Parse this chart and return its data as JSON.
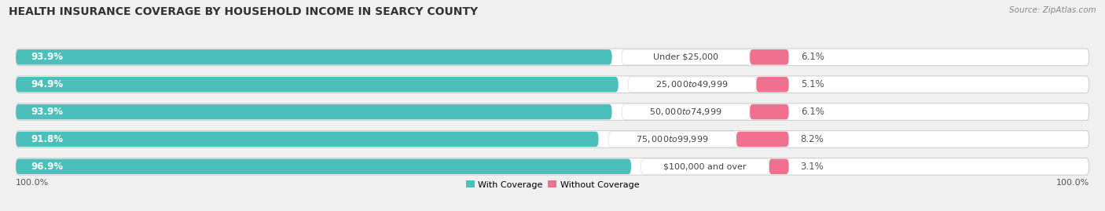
{
  "title": "HEALTH INSURANCE COVERAGE BY HOUSEHOLD INCOME IN SEARCY COUNTY",
  "source": "Source: ZipAtlas.com",
  "categories": [
    "Under $25,000",
    "$25,000 to $49,999",
    "$50,000 to $74,999",
    "$75,000 to $99,999",
    "$100,000 and over"
  ],
  "with_coverage": [
    93.9,
    94.9,
    93.9,
    91.8,
    96.9
  ],
  "without_coverage": [
    6.1,
    5.1,
    6.1,
    8.2,
    3.1
  ],
  "color_with": "#4BBFBA",
  "color_without": "#F07090",
  "background_color": "#f0f0f0",
  "bar_bg_color": "#ffffff",
  "bar_height": 0.62,
  "legend_with": "With Coverage",
  "legend_without": "Without Coverage",
  "left_label": "100.0%",
  "right_label": "100.0%",
  "title_fontsize": 10,
  "label_fontsize": 8,
  "bar_label_fontsize": 8.5,
  "source_fontsize": 7.5,
  "cat_label_fontsize": 8
}
